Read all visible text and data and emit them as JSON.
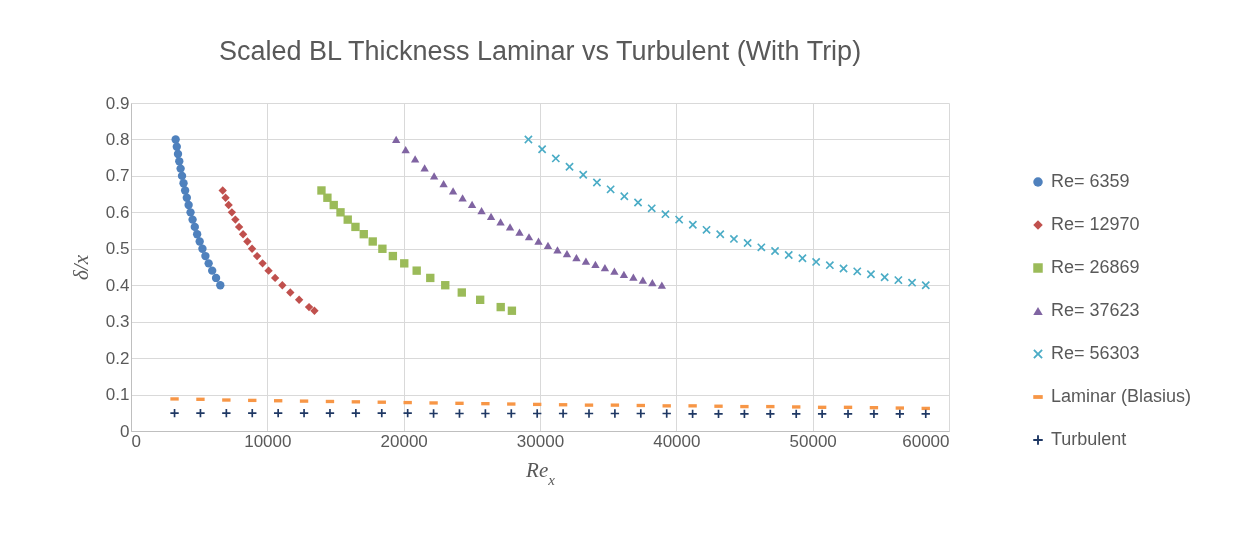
{
  "chart_data": {
    "type": "scatter",
    "title": "Scaled BL Thickness Laminar vs Turbulent (With Trip)",
    "xlabel": "Re$_{x}$",
    "ylabel": "δ/x",
    "xlim": [
      0,
      60000
    ],
    "xticks": [
      0,
      10000,
      20000,
      30000,
      40000,
      50000,
      60000
    ],
    "ylim": [
      0,
      0.9
    ],
    "yticks": [
      0,
      0.1,
      0.2,
      0.3,
      0.4,
      0.5,
      0.6,
      0.7,
      0.8,
      0.9
    ],
    "grid": true,
    "legend": "right",
    "series": [
      {
        "name": "Re= 6359",
        "color": "#4f81bd",
        "marker": "circle",
        "x": [
          3275,
          3359,
          3447,
          3541,
          3639,
          3743,
          3853,
          3970,
          4094,
          4226,
          4367,
          4517,
          4679,
          4852,
          5038,
          5240,
          5458,
          5696,
          5955,
          6238,
          6550
        ],
        "values": [
          0.8,
          0.78,
          0.76,
          0.74,
          0.72,
          0.7,
          0.68,
          0.66,
          0.64,
          0.62,
          0.6,
          0.58,
          0.56,
          0.54,
          0.52,
          0.5,
          0.48,
          0.46,
          0.44,
          0.42,
          0.4
        ]
      },
      {
        "name": "Re= 12970",
        "color": "#c0504d",
        "marker": "diamond",
        "x": [
          6727,
          6938,
          7161,
          7400,
          7655,
          7929,
          8222,
          8538,
          8880,
          9250,
          9652,
          10091,
          10571,
          11100,
          11684,
          12333,
          13059,
          13455
        ],
        "values": [
          0.66,
          0.64,
          0.62,
          0.6,
          0.58,
          0.56,
          0.54,
          0.52,
          0.5,
          0.48,
          0.46,
          0.44,
          0.42,
          0.4,
          0.38,
          0.36,
          0.34,
          0.33
        ]
      },
      {
        "name": "Re= 26869",
        "color": "#9bbb59",
        "marker": "square",
        "x": [
          13970,
          14406,
          14871,
          15367,
          15897,
          16464,
          17074,
          17731,
          18440,
          19208,
          20043,
          20955,
          21952,
          23050,
          24263,
          25611,
          27118,
          27939
        ],
        "values": [
          0.66,
          0.64,
          0.62,
          0.6,
          0.58,
          0.56,
          0.54,
          0.52,
          0.5,
          0.48,
          0.46,
          0.44,
          0.42,
          0.4,
          0.38,
          0.36,
          0.34,
          0.33
        ]
      },
      {
        "name": "Re= 37623",
        "color": "#8064a2",
        "marker": "triangle",
        "x": [
          19450,
          20146,
          20842,
          21538,
          22234,
          22930,
          23626,
          24322,
          25018,
          25714,
          26410,
          27106,
          27802,
          28498,
          29194,
          29890,
          30586,
          31282,
          31978,
          32674,
          33370,
          34066,
          34762,
          35458,
          36154,
          36850,
          37546,
          38242,
          38938
        ],
        "values": [
          0.8,
          0.772,
          0.747,
          0.722,
          0.7,
          0.679,
          0.659,
          0.64,
          0.622,
          0.605,
          0.589,
          0.574,
          0.56,
          0.546,
          0.533,
          0.521,
          0.509,
          0.497,
          0.487,
          0.476,
          0.466,
          0.457,
          0.448,
          0.439,
          0.43,
          0.422,
          0.414,
          0.407,
          0.4
        ]
      },
      {
        "name": "Re= 56303",
        "color": "#4bacc6",
        "marker": "cross",
        "x": [
          29150,
          30155,
          31160,
          32165,
          33170,
          34175,
          35180,
          36185,
          37190,
          38195,
          39200,
          40205,
          41210,
          42215,
          43220,
          44225,
          45230,
          46235,
          47240,
          48245,
          49250,
          50255,
          51260,
          52265,
          53270,
          54275,
          55280,
          56285,
          57290,
          58295
        ],
        "values": [
          0.8,
          0.773,
          0.748,
          0.725,
          0.703,
          0.682,
          0.663,
          0.644,
          0.627,
          0.611,
          0.595,
          0.58,
          0.566,
          0.552,
          0.54,
          0.527,
          0.516,
          0.504,
          0.494,
          0.483,
          0.474,
          0.464,
          0.455,
          0.446,
          0.438,
          0.43,
          0.422,
          0.414,
          0.407,
          0.4
        ]
      },
      {
        "name": "Laminar (Blasius)",
        "color": "#f79646",
        "x": [
          3194,
          5094,
          6994,
          8894,
          10794,
          12694,
          14594,
          16494,
          18394,
          20294,
          22194,
          24094,
          25994,
          27894,
          29794,
          31694,
          33594,
          35494,
          37394,
          39294,
          41194,
          43094,
          44994,
          46894,
          48794,
          50694,
          52594,
          54494,
          56394,
          58294
        ],
        "values": [
          0.088,
          0.087,
          0.085,
          0.084,
          0.083,
          0.082,
          0.081,
          0.08,
          0.079,
          0.078,
          0.077,
          0.076,
          0.075,
          0.074,
          0.073,
          0.072,
          0.071,
          0.071,
          0.07,
          0.069,
          0.069,
          0.068,
          0.067,
          0.067,
          0.066,
          0.065,
          0.065,
          0.064,
          0.063,
          0.062
        ]
      },
      {
        "name": "Turbulent",
        "color": "#1f3864",
        "marker": "plus",
        "x": [
          3194,
          5094,
          6994,
          8894,
          10794,
          12694,
          14594,
          16494,
          18394,
          20294,
          22194,
          24094,
          25994,
          27894,
          29794,
          31694,
          33594,
          35494,
          37394,
          39294,
          41194,
          43094,
          44994,
          46894,
          48794,
          50694,
          52594,
          54494,
          56394,
          58294
        ],
        "values": [
          0.049,
          0.049,
          0.049,
          0.049,
          0.049,
          0.049,
          0.049,
          0.049,
          0.049,
          0.049,
          0.048,
          0.048,
          0.048,
          0.048,
          0.048,
          0.048,
          0.048,
          0.048,
          0.048,
          0.048,
          0.047,
          0.047,
          0.047,
          0.047,
          0.047,
          0.047,
          0.047,
          0.047,
          0.047,
          0.047
        ]
      }
    ]
  }
}
